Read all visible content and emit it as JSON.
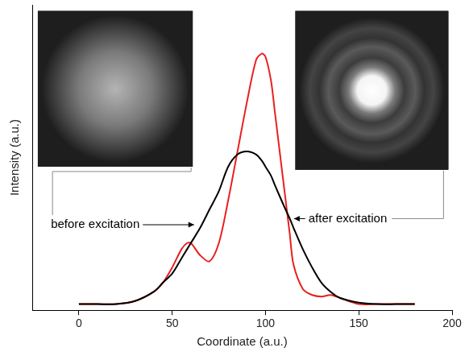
{
  "chart_data": {
    "type": "line",
    "x_label": "Coordinate (a.u.)",
    "y_label": "Intensity (a.u.)",
    "x": [
      0,
      10,
      20,
      30,
      40,
      45,
      50,
      55,
      58,
      60,
      65,
      70,
      75,
      80,
      85,
      90,
      95,
      98,
      100,
      103,
      105,
      110,
      113,
      115,
      120,
      125,
      130,
      135,
      140,
      150,
      160,
      170,
      180
    ],
    "series": [
      {
        "name": "before excitation",
        "color": "#000000",
        "values": [
          0.02,
          0.02,
          0.02,
          0.03,
          0.06,
          0.09,
          0.12,
          0.17,
          0.2,
          0.22,
          0.27,
          0.33,
          0.39,
          0.47,
          0.51,
          0.52,
          0.51,
          0.49,
          0.47,
          0.44,
          0.41,
          0.34,
          0.3,
          0.27,
          0.2,
          0.14,
          0.09,
          0.06,
          0.04,
          0.025,
          0.02,
          0.02,
          0.02
        ]
      },
      {
        "name": "after excitation",
        "color": "#e8201f",
        "values": [
          0.02,
          0.02,
          0.02,
          0.03,
          0.06,
          0.09,
          0.14,
          0.2,
          0.22,
          0.22,
          0.18,
          0.16,
          0.22,
          0.36,
          0.52,
          0.68,
          0.82,
          0.84,
          0.83,
          0.75,
          0.65,
          0.4,
          0.25,
          0.15,
          0.07,
          0.05,
          0.045,
          0.05,
          0.04,
          0.02,
          0.02,
          0.02,
          0.02
        ]
      }
    ],
    "xlim": [
      -25,
      200
    ],
    "xticks": [
      0,
      50,
      100,
      150,
      200
    ],
    "ylim": [
      0,
      1
    ],
    "tick_labels": "x",
    "grid": false
  }
}
